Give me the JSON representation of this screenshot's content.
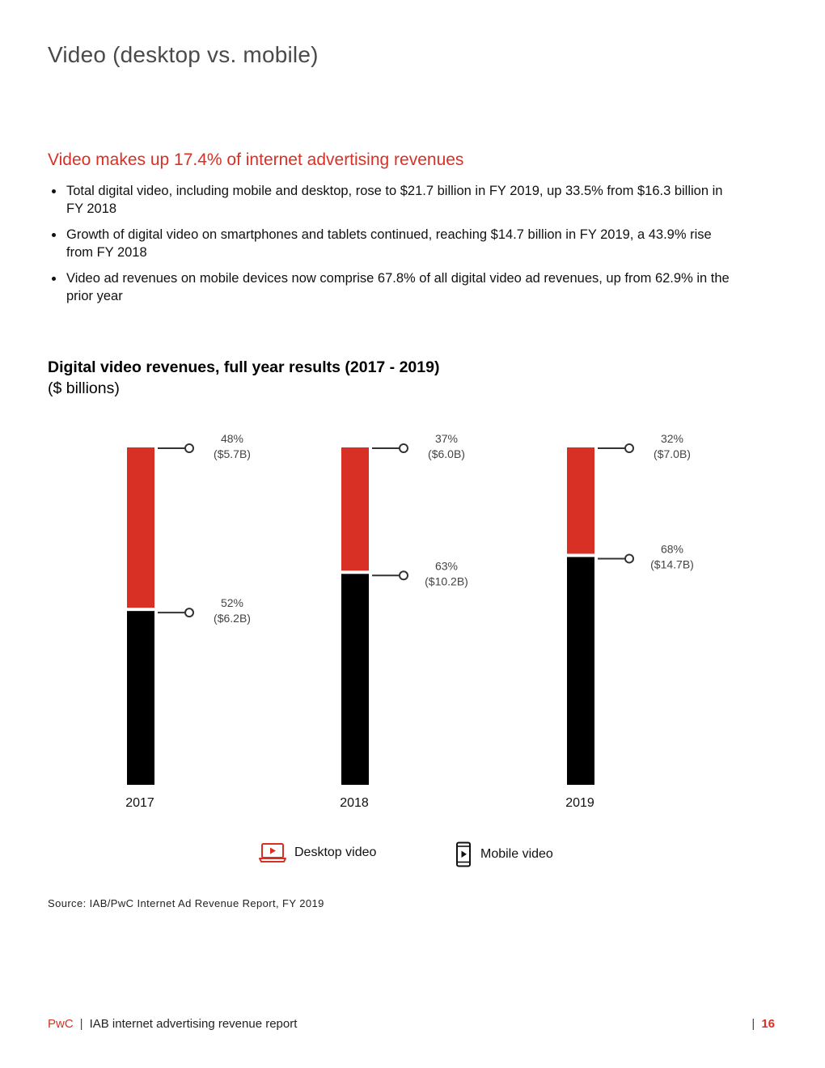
{
  "page": {
    "title": "Video (desktop vs. mobile)",
    "headline": "Video makes up 17.4% of internet advertising revenues",
    "bullets": [
      "Total digital video, including mobile and desktop, rose to $21.7 billion in FY 2019, up 33.5% from $16.3 billion in FY 2018",
      "Growth of digital video on smartphones and tablets continued, reaching $14.7 billion in FY 2019, a 43.9% rise from FY 2018",
      "Video ad revenues on mobile devices now comprise 67.8% of all digital video ad revenues, up from 62.9% in the prior year"
    ],
    "source": "Source: IAB/PwC Internet Ad Revenue Report, FY 2019"
  },
  "chart_title": "Digital video revenues, full year results (2017 - 2019)",
  "chart_subtitle": "($ billions)",
  "legend": {
    "desktop": "Desktop video",
    "mobile": "Mobile video",
    "desktop_icon": "laptop-play-icon",
    "mobile_icon": "smartphone-play-icon"
  },
  "colors": {
    "desktop": "#d93025",
    "mobile": "#000000",
    "accent": "#d93025"
  },
  "chart_data": {
    "type": "bar",
    "stacked": true,
    "normalized": true,
    "categories": [
      "2017",
      "2018",
      "2019"
    ],
    "series": [
      {
        "name": "Desktop video",
        "values": [
          5.7,
          6.0,
          7.0
        ],
        "percent": [
          48,
          37,
          32
        ],
        "labels": [
          [
            "48%",
            "($5.7B)"
          ],
          [
            "37%",
            "($6.0B)"
          ],
          [
            "32%",
            "($7.0B)"
          ]
        ]
      },
      {
        "name": "Mobile video",
        "values": [
          6.2,
          10.2,
          14.7
        ],
        "percent": [
          52,
          63,
          68
        ],
        "labels": [
          [
            "52%",
            "($6.2B)"
          ],
          [
            "63%",
            "($10.2B)"
          ],
          [
            "68%",
            "($14.7B)"
          ]
        ]
      }
    ],
    "legend_position": "bottom",
    "grid": false
  },
  "footer": {
    "brand": "PwC",
    "separator": "|",
    "report": "IAB internet advertising revenue report",
    "page_number": "16"
  }
}
